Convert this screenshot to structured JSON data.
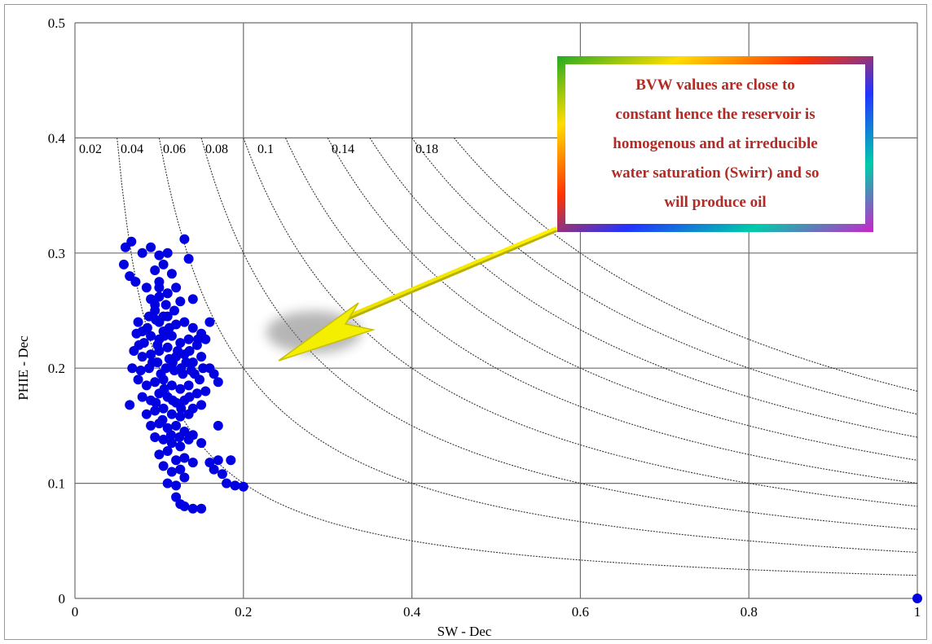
{
  "chart_data": {
    "type": "scatter",
    "title": "",
    "xlabel": "SW - Dec",
    "ylabel": "PHIE - Dec",
    "xlim": [
      0,
      1
    ],
    "ylim": [
      0,
      0.5
    ],
    "grid": true,
    "x_ticks": [
      "0",
      "0.2",
      "0.4",
      "0.6",
      "0.8",
      "1"
    ],
    "y_ticks": [
      "0",
      "0.1",
      "0.2",
      "0.3",
      "0.4",
      "0.5"
    ],
    "bvw_curves": {
      "values": [
        0.02,
        0.04,
        0.06,
        0.08,
        0.1,
        0.14,
        0.18
      ],
      "labels": [
        "0.02",
        "0.04",
        "0.06",
        "0.08",
        "0.1",
        "0.14",
        "0.18"
      ],
      "extra_unlabeled_values": [
        0.12,
        0.16
      ]
    },
    "points_color": "#0000e0",
    "points": [
      [
        0.06,
        0.305
      ],
      [
        0.067,
        0.31
      ],
      [
        0.058,
        0.29
      ],
      [
        0.072,
        0.275
      ],
      [
        0.065,
        0.28
      ],
      [
        0.08,
        0.3
      ],
      [
        0.09,
        0.305
      ],
      [
        0.1,
        0.298
      ],
      [
        0.11,
        0.3
      ],
      [
        0.105,
        0.29
      ],
      [
        0.095,
        0.285
      ],
      [
        0.115,
        0.282
      ],
      [
        0.1,
        0.275
      ],
      [
        0.12,
        0.27
      ],
      [
        0.13,
        0.312
      ],
      [
        0.135,
        0.295
      ],
      [
        0.085,
        0.27
      ],
      [
        0.09,
        0.26
      ],
      [
        0.1,
        0.262
      ],
      [
        0.11,
        0.265
      ],
      [
        0.108,
        0.255
      ],
      [
        0.118,
        0.25
      ],
      [
        0.125,
        0.258
      ],
      [
        0.14,
        0.26
      ],
      [
        0.095,
        0.25
      ],
      [
        0.088,
        0.245
      ],
      [
        0.075,
        0.24
      ],
      [
        0.08,
        0.232
      ],
      [
        0.1,
        0.24
      ],
      [
        0.11,
        0.245
      ],
      [
        0.12,
        0.238
      ],
      [
        0.13,
        0.24
      ],
      [
        0.14,
        0.235
      ],
      [
        0.15,
        0.23
      ],
      [
        0.16,
        0.24
      ],
      [
        0.073,
        0.23
      ],
      [
        0.082,
        0.222
      ],
      [
        0.09,
        0.228
      ],
      [
        0.1,
        0.225
      ],
      [
        0.105,
        0.232
      ],
      [
        0.115,
        0.228
      ],
      [
        0.125,
        0.222
      ],
      [
        0.135,
        0.225
      ],
      [
        0.145,
        0.22
      ],
      [
        0.155,
        0.225
      ],
      [
        0.07,
        0.215
      ],
      [
        0.08,
        0.21
      ],
      [
        0.09,
        0.212
      ],
      [
        0.1,
        0.215
      ],
      [
        0.11,
        0.218
      ],
      [
        0.12,
        0.21
      ],
      [
        0.13,
        0.212
      ],
      [
        0.14,
        0.205
      ],
      [
        0.15,
        0.21
      ],
      [
        0.16,
        0.2
      ],
      [
        0.068,
        0.2
      ],
      [
        0.078,
        0.198
      ],
      [
        0.088,
        0.2
      ],
      [
        0.098,
        0.205
      ],
      [
        0.108,
        0.2
      ],
      [
        0.118,
        0.198
      ],
      [
        0.128,
        0.195
      ],
      [
        0.138,
        0.198
      ],
      [
        0.148,
        0.19
      ],
      [
        0.165,
        0.195
      ],
      [
        0.17,
        0.188
      ],
      [
        0.075,
        0.19
      ],
      [
        0.085,
        0.185
      ],
      [
        0.095,
        0.188
      ],
      [
        0.105,
        0.19
      ],
      [
        0.115,
        0.185
      ],
      [
        0.125,
        0.182
      ],
      [
        0.135,
        0.185
      ],
      [
        0.145,
        0.178
      ],
      [
        0.155,
        0.18
      ],
      [
        0.08,
        0.175
      ],
      [
        0.09,
        0.172
      ],
      [
        0.1,
        0.178
      ],
      [
        0.11,
        0.175
      ],
      [
        0.12,
        0.17
      ],
      [
        0.13,
        0.172
      ],
      [
        0.14,
        0.165
      ],
      [
        0.15,
        0.168
      ],
      [
        0.065,
        0.168
      ],
      [
        0.085,
        0.16
      ],
      [
        0.095,
        0.163
      ],
      [
        0.105,
        0.165
      ],
      [
        0.115,
        0.16
      ],
      [
        0.125,
        0.158
      ],
      [
        0.135,
        0.16
      ],
      [
        0.09,
        0.15
      ],
      [
        0.1,
        0.152
      ],
      [
        0.11,
        0.148
      ],
      [
        0.12,
        0.15
      ],
      [
        0.13,
        0.145
      ],
      [
        0.14,
        0.142
      ],
      [
        0.17,
        0.15
      ],
      [
        0.095,
        0.14
      ],
      [
        0.105,
        0.138
      ],
      [
        0.115,
        0.135
      ],
      [
        0.125,
        0.132
      ],
      [
        0.135,
        0.138
      ],
      [
        0.15,
        0.135
      ],
      [
        0.1,
        0.125
      ],
      [
        0.11,
        0.128
      ],
      [
        0.12,
        0.12
      ],
      [
        0.13,
        0.122
      ],
      [
        0.14,
        0.118
      ],
      [
        0.16,
        0.118
      ],
      [
        0.17,
        0.12
      ],
      [
        0.185,
        0.12
      ],
      [
        0.105,
        0.115
      ],
      [
        0.115,
        0.11
      ],
      [
        0.125,
        0.112
      ],
      [
        0.165,
        0.112
      ],
      [
        0.175,
        0.108
      ],
      [
        0.11,
        0.1
      ],
      [
        0.12,
        0.098
      ],
      [
        0.13,
        0.105
      ],
      [
        0.18,
        0.1
      ],
      [
        0.19,
        0.098
      ],
      [
        0.2,
        0.097
      ],
      [
        0.12,
        0.088
      ],
      [
        0.125,
        0.082
      ],
      [
        0.13,
        0.08
      ],
      [
        0.14,
        0.078
      ],
      [
        0.15,
        0.078
      ],
      [
        0.11,
        0.265
      ],
      [
        0.1,
        0.27
      ],
      [
        0.095,
        0.255
      ],
      [
        0.105,
        0.245
      ],
      [
        0.112,
        0.235
      ],
      [
        0.098,
        0.22
      ],
      [
        0.092,
        0.205
      ],
      [
        0.102,
        0.195
      ],
      [
        0.112,
        0.208
      ],
      [
        0.122,
        0.215
      ],
      [
        0.132,
        0.205
      ],
      [
        0.142,
        0.195
      ],
      [
        0.152,
        0.2
      ],
      [
        0.086,
        0.235
      ],
      [
        0.096,
        0.242
      ],
      [
        0.106,
        0.228
      ],
      [
        0.116,
        0.205
      ],
      [
        0.126,
        0.2
      ],
      [
        0.136,
        0.215
      ],
      [
        0.146,
        0.225
      ],
      [
        0.076,
        0.22
      ],
      [
        0.096,
        0.17
      ],
      [
        0.106,
        0.182
      ],
      [
        0.116,
        0.172
      ],
      [
        0.126,
        0.165
      ],
      [
        0.136,
        0.175
      ],
      [
        0.104,
        0.155
      ],
      [
        0.114,
        0.142
      ],
      [
        0.124,
        0.14
      ],
      [
        1.0,
        0.0
      ]
    ]
  },
  "annotation": {
    "lines": [
      "BVW values are close to",
      "constant hence the reservoir is",
      "homogenous and at irreducible",
      "water saturation  (Swirr) and so",
      "will produce oil"
    ]
  }
}
